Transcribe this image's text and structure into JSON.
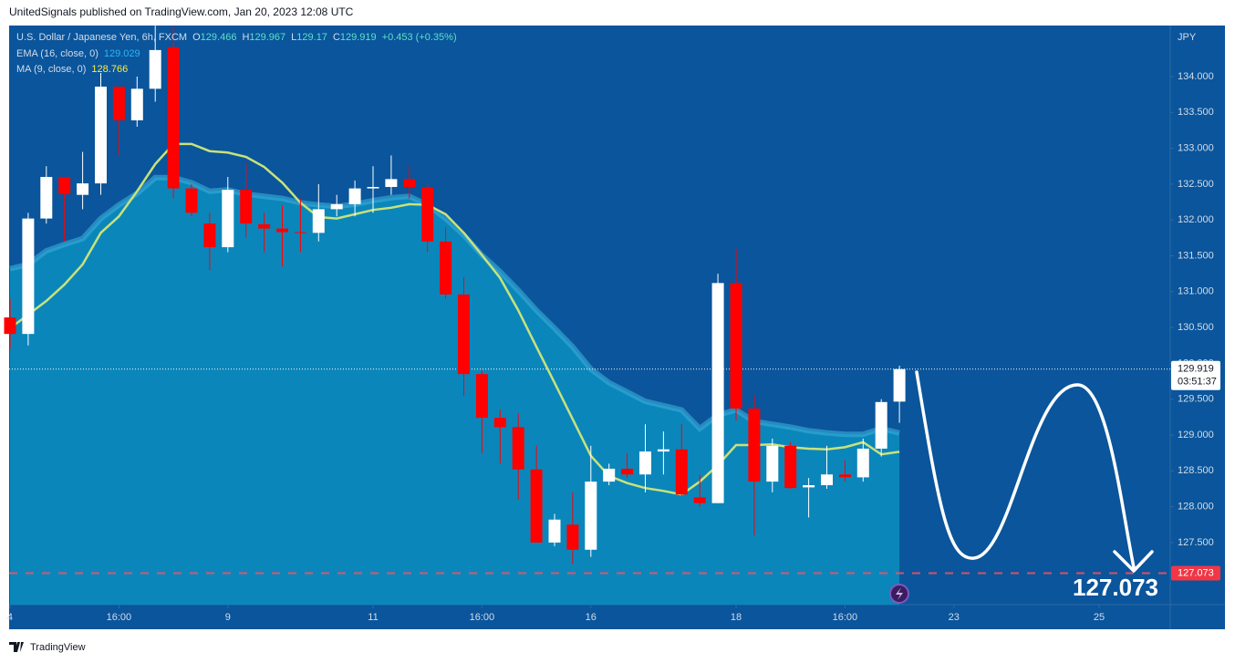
{
  "header": {
    "text": "UnitedSignals published on TradingView.com, Jan 20, 2023 12:08 UTC"
  },
  "footer": {
    "logo": "TradingView"
  },
  "chart_data": {
    "type": "candlestick",
    "title": "U.S. Dollar / Japanese Yen, 6h, FXCM",
    "currency": "JPY",
    "ohlc_labels": [
      "O",
      "H",
      "L",
      "C"
    ],
    "change": "+0.453 (+0.35%)",
    "countdown": "03:51:37",
    "target": 127.073,
    "xlim": [
      -0.05,
      63.92
    ],
    "xticks": [
      {
        "value": 0,
        "label": "4"
      },
      {
        "value": 6,
        "label": "16:00"
      },
      {
        "value": 12,
        "label": "9"
      },
      {
        "value": 20,
        "label": "11"
      },
      {
        "value": 26,
        "label": "16:00"
      },
      {
        "value": 32,
        "label": "16"
      },
      {
        "value": 40,
        "label": "18"
      },
      {
        "value": 46,
        "label": "16:00"
      },
      {
        "value": 52,
        "label": "23"
      },
      {
        "value": 60,
        "label": "25"
      }
    ],
    "ylim": [
      126.634,
      134.712
    ],
    "yticks": [
      {
        "value": 127.5,
        "label": "127.500"
      },
      {
        "value": 128,
        "label": "128.000"
      },
      {
        "value": 128.5,
        "label": "128.500"
      },
      {
        "value": 129,
        "label": "129.000"
      },
      {
        "value": 129.5,
        "label": "129.500"
      },
      {
        "value": 130,
        "label": "130.000"
      },
      {
        "value": 130.5,
        "label": "130.500"
      },
      {
        "value": 131,
        "label": "131.000"
      },
      {
        "value": 131.5,
        "label": "131.500"
      },
      {
        "value": 132,
        "label": "132.000"
      },
      {
        "value": 132.5,
        "label": "132.500"
      },
      {
        "value": 133,
        "label": "133.000"
      },
      {
        "value": 133.5,
        "label": "133.500"
      },
      {
        "value": 134,
        "label": "134.000"
      }
    ],
    "x": [
      0,
      1,
      2,
      3,
      4,
      5,
      6,
      7,
      8,
      9,
      10,
      11,
      12,
      13,
      14,
      15,
      16,
      17,
      18,
      19,
      20,
      21,
      22,
      23,
      24,
      25,
      26,
      27,
      28,
      29,
      30,
      31,
      32,
      33,
      34,
      35,
      36,
      37,
      38,
      39,
      40,
      41,
      42,
      43,
      44,
      45,
      46,
      47,
      48,
      49
    ],
    "candles": {
      "up_color": "#ffffff",
      "down_color": "#ff0000",
      "open": [
        130.64,
        130.41,
        132.02,
        132.6,
        132.35,
        132.51,
        133.86,
        133.39,
        133.83,
        134.41,
        132.44,
        131.95,
        131.62,
        132.42,
        131.94,
        131.88,
        131.83,
        131.82,
        132.15,
        132.22,
        132.44,
        132.46,
        132.57,
        132.46,
        131.7,
        130.96,
        129.85,
        129.24,
        129.11,
        128.52,
        127.5,
        127.75,
        127.4,
        128.35,
        128.53,
        128.45,
        128.77,
        128.8,
        128.13,
        128.05,
        131.12,
        129.37,
        128.35,
        128.85,
        128.27,
        128.3,
        128.45,
        128.41,
        128.81,
        129.466
      ],
      "high": [
        130.9,
        132.1,
        132.75,
        132.6,
        132.95,
        134.05,
        133.86,
        134.0,
        134.71,
        134.7,
        132.5,
        132.1,
        132.6,
        132.8,
        132.1,
        132.2,
        132.3,
        132.5,
        132.35,
        132.55,
        132.75,
        132.9,
        132.75,
        132.5,
        131.9,
        131.2,
        129.9,
        129.35,
        129.3,
        128.85,
        127.9,
        128.2,
        128.85,
        128.6,
        128.75,
        129.15,
        129.05,
        129.15,
        128.45,
        131.25,
        131.6,
        129.55,
        128.95,
        128.9,
        128.4,
        128.85,
        128.65,
        128.95,
        129.5,
        129.967
      ],
      "low": [
        130.2,
        130.25,
        131.95,
        131.7,
        132.15,
        132.35,
        132.9,
        133.3,
        133.65,
        132.3,
        132.05,
        131.3,
        131.55,
        131.75,
        131.55,
        131.35,
        131.55,
        131.7,
        132.05,
        132.05,
        132.1,
        132.35,
        132.3,
        131.55,
        130.9,
        129.55,
        128.75,
        128.6,
        128.1,
        127.5,
        127.45,
        127.2,
        127.3,
        128.3,
        128.4,
        128.2,
        128.45,
        128.15,
        128.0,
        128.05,
        129.2,
        127.6,
        128.2,
        128.25,
        127.85,
        128.25,
        128.35,
        128.35,
        128.7,
        129.17
      ],
      "close": [
        130.41,
        132.02,
        132.6,
        132.36,
        132.51,
        133.86,
        133.39,
        133.83,
        134.37,
        132.44,
        132.1,
        131.62,
        132.42,
        131.95,
        131.88,
        131.83,
        131.82,
        132.15,
        132.22,
        132.44,
        132.46,
        132.57,
        132.46,
        131.7,
        130.96,
        129.85,
        129.24,
        129.11,
        128.52,
        127.5,
        127.82,
        127.4,
        128.35,
        128.53,
        128.45,
        128.77,
        128.8,
        128.17,
        128.05,
        131.12,
        129.37,
        128.35,
        128.85,
        128.26,
        128.3,
        128.45,
        128.41,
        128.81,
        129.46,
        129.919
      ]
    },
    "indicators": [
      {
        "name": "EMA (16, close, 0)",
        "color": "#29b6f6",
        "fill": "#0b86bb",
        "line_color": "#3aaed8",
        "values": [
          131.32,
          131.38,
          131.57,
          131.66,
          131.74,
          132.02,
          132.21,
          132.37,
          132.59,
          132.59,
          132.52,
          132.4,
          132.42,
          132.36,
          132.33,
          132.3,
          132.24,
          132.21,
          132.19,
          132.22,
          132.27,
          132.31,
          132.33,
          132.21,
          132.02,
          131.79,
          131.51,
          131.28,
          131.02,
          130.74,
          130.49,
          130.23,
          129.92,
          129.73,
          129.6,
          129.47,
          129.41,
          129.35,
          129.09,
          129.28,
          129.35,
          129.19,
          129.15,
          129.11,
          129.06,
          129.03,
          129.01,
          129.01,
          129.09,
          129.029
        ]
      },
      {
        "name": "MA (9, close, 0)",
        "color": "#ffeb3b",
        "line_color": "#c8e27a",
        "values": [
          130.49,
          130.68,
          130.87,
          131.1,
          131.38,
          131.82,
          132.05,
          132.4,
          132.78,
          133.06,
          133.06,
          132.96,
          132.94,
          132.88,
          132.74,
          132.52,
          132.24,
          132.04,
          132.02,
          132.08,
          132.14,
          132.17,
          132.22,
          132.21,
          132.08,
          131.82,
          131.51,
          131.19,
          130.74,
          130.23,
          129.73,
          129.22,
          128.71,
          128.43,
          128.33,
          128.26,
          128.22,
          128.17,
          128.35,
          128.58,
          128.86,
          128.86,
          128.87,
          128.83,
          128.81,
          128.8,
          128.83,
          128.9,
          128.73,
          128.766
        ]
      }
    ]
  }
}
